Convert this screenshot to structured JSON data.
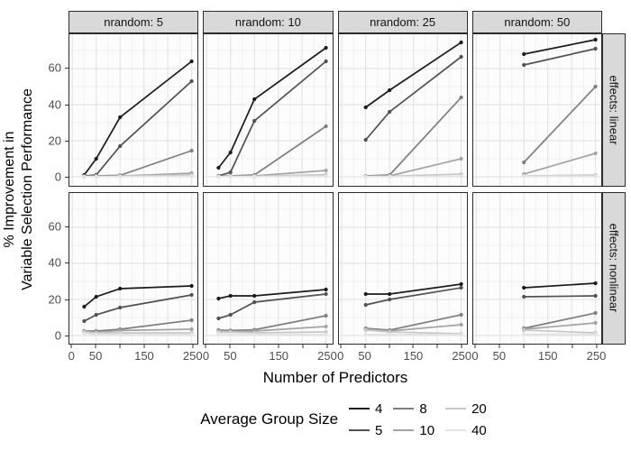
{
  "chart_data": {
    "type": "line",
    "title": "",
    "xlabel": "Number of Predictors",
    "ylabel": "% Improvement in\nVariable Selection Performance",
    "legend_title": "Average Group Size",
    "legend_position": "bottom",
    "grid": true,
    "x_axis": {
      "lim": [
        -6,
        262
      ],
      "ticks_all": [
        0,
        50,
        100,
        150,
        200,
        250
      ],
      "ticks_labeled": [
        0,
        50,
        150,
        250
      ],
      "minor": [
        25,
        75,
        125,
        175,
        225
      ]
    },
    "y_axis": {
      "lim": [
        -5,
        79
      ],
      "ticks": [
        0,
        20,
        40,
        60
      ],
      "minor": [
        10,
        30,
        50,
        70
      ]
    },
    "col_labels": [
      "nrandom: 5",
      "nrandom: 10",
      "nrandom: 25",
      "nrandom: 50"
    ],
    "row_labels": [
      "effects: linear",
      "effects: nonlinear"
    ],
    "series": [
      {
        "name": "4",
        "color": "#1b1b1b"
      },
      {
        "name": "5",
        "color": "#515151"
      },
      {
        "name": "8",
        "color": "#7f7f7f"
      },
      {
        "name": "10",
        "color": "#a4a4a4"
      },
      {
        "name": "20",
        "color": "#c7c7c7"
      },
      {
        "name": "40",
        "color": "#e4e4e4"
      }
    ],
    "panels": [
      {
        "col": "nrandom: 5",
        "row": "effects: linear",
        "values": [
          [
            [
              25,
              1
            ],
            [
              50,
              10
            ],
            [
              100,
              33
            ],
            [
              250,
              64
            ]
          ],
          [
            [
              25,
              0.5
            ],
            [
              50,
              1
            ],
            [
              100,
              17
            ],
            [
              250,
              53
            ]
          ],
          [
            [
              25,
              0.3
            ],
            [
              50,
              0.5
            ],
            [
              100,
              0.8
            ],
            [
              250,
              14.5
            ]
          ],
          [
            [
              25,
              0.2
            ],
            [
              50,
              0.3
            ],
            [
              100,
              0.4
            ],
            [
              250,
              2
            ]
          ],
          [
            [
              25,
              0.2
            ],
            [
              50,
              0.2
            ],
            [
              100,
              0.3
            ],
            [
              250,
              1
            ]
          ],
          [
            [
              25,
              0.1
            ],
            [
              50,
              0.1
            ],
            [
              100,
              0.1
            ],
            [
              250,
              0.3
            ]
          ]
        ]
      },
      {
        "col": "nrandom: 10",
        "row": "effects: linear",
        "values": [
          [
            [
              25,
              5
            ],
            [
              50,
              13.5
            ],
            [
              100,
              43
            ],
            [
              250,
              71.5
            ]
          ],
          [
            [
              25,
              0.5
            ],
            [
              50,
              2.5
            ],
            [
              100,
              31
            ],
            [
              250,
              64
            ]
          ],
          [
            [
              25,
              0.3
            ],
            [
              50,
              0.5
            ],
            [
              100,
              1
            ],
            [
              250,
              28
            ]
          ],
          [
            [
              25,
              0.2
            ],
            [
              50,
              0.3
            ],
            [
              100,
              0.5
            ],
            [
              250,
              3.5
            ]
          ],
          [
            [
              25,
              0.2
            ],
            [
              50,
              0.2
            ],
            [
              100,
              0.3
            ],
            [
              250,
              1.2
            ]
          ],
          [
            [
              25,
              0.1
            ],
            [
              50,
              0.1
            ],
            [
              100,
              0.1
            ],
            [
              250,
              0.3
            ]
          ]
        ]
      },
      {
        "col": "nrandom: 25",
        "row": "effects: linear",
        "values": [
          [
            [
              50,
              38.5
            ],
            [
              100,
              48
            ],
            [
              250,
              74.5
            ]
          ],
          [
            [
              50,
              20.5
            ],
            [
              100,
              36
            ],
            [
              250,
              66.5
            ]
          ],
          [
            [
              50,
              0.5
            ],
            [
              100,
              1
            ],
            [
              250,
              44
            ]
          ],
          [
            [
              50,
              0.3
            ],
            [
              100,
              0.5
            ],
            [
              250,
              10
            ]
          ],
          [
            [
              50,
              0.2
            ],
            [
              100,
              0.3
            ],
            [
              250,
              1.5
            ]
          ],
          [
            [
              50,
              0.1
            ],
            [
              100,
              0.1
            ],
            [
              250,
              0.3
            ]
          ]
        ]
      },
      {
        "col": "nrandom: 50",
        "row": "effects: linear",
        "values": [
          [
            [
              100,
              68
            ],
            [
              250,
              76
            ]
          ],
          [
            [
              100,
              62
            ],
            [
              250,
              71
            ]
          ],
          [
            [
              100,
              8
            ],
            [
              250,
              50
            ]
          ],
          [
            [
              100,
              1.5
            ],
            [
              250,
              13
            ]
          ],
          [
            [
              100,
              0.5
            ],
            [
              250,
              1
            ]
          ],
          [
            [
              100,
              0.3
            ],
            [
              250,
              0.3
            ]
          ]
        ]
      },
      {
        "col": "nrandom: 5",
        "row": "effects: nonlinear",
        "values": [
          [
            [
              25,
              16
            ],
            [
              50,
              21.5
            ],
            [
              100,
              26
            ],
            [
              250,
              27.5
            ]
          ],
          [
            [
              25,
              8
            ],
            [
              50,
              11.5
            ],
            [
              100,
              15.5
            ],
            [
              250,
              22.5
            ]
          ],
          [
            [
              25,
              2.5
            ],
            [
              50,
              2.5
            ],
            [
              100,
              3.5
            ],
            [
              250,
              8.5
            ]
          ],
          [
            [
              25,
              2.2
            ],
            [
              50,
              1.8
            ],
            [
              100,
              2.8
            ],
            [
              250,
              3.5
            ]
          ],
          [
            [
              25,
              2
            ],
            [
              50,
              1.5
            ],
            [
              100,
              1.5
            ],
            [
              250,
              1.5
            ]
          ],
          [
            [
              25,
              1
            ],
            [
              50,
              0.6
            ],
            [
              100,
              0.6
            ],
            [
              250,
              0.6
            ]
          ]
        ]
      },
      {
        "col": "nrandom: 10",
        "row": "effects: nonlinear",
        "values": [
          [
            [
              25,
              20.5
            ],
            [
              50,
              22
            ],
            [
              100,
              22
            ],
            [
              250,
              25.5
            ]
          ],
          [
            [
              25,
              9.5
            ],
            [
              50,
              11.5
            ],
            [
              100,
              18.5
            ],
            [
              250,
              23
            ]
          ],
          [
            [
              25,
              3
            ],
            [
              50,
              2.8
            ],
            [
              100,
              3.2
            ],
            [
              250,
              11
            ]
          ],
          [
            [
              25,
              2.5
            ],
            [
              50,
              2.2
            ],
            [
              100,
              2.5
            ],
            [
              250,
              5
            ]
          ],
          [
            [
              25,
              2
            ],
            [
              50,
              2
            ],
            [
              100,
              1.5
            ],
            [
              250,
              2
            ]
          ],
          [
            [
              25,
              1
            ],
            [
              50,
              0.8
            ],
            [
              100,
              0.6
            ],
            [
              250,
              0.6
            ]
          ]
        ]
      },
      {
        "col": "nrandom: 25",
        "row": "effects: nonlinear",
        "values": [
          [
            [
              50,
              23
            ],
            [
              100,
              23
            ],
            [
              250,
              28.5
            ]
          ],
          [
            [
              50,
              17
            ],
            [
              100,
              20
            ],
            [
              250,
              26.5
            ]
          ],
          [
            [
              50,
              4
            ],
            [
              100,
              3
            ],
            [
              250,
              11.5
            ]
          ],
          [
            [
              50,
              3.5
            ],
            [
              100,
              2.5
            ],
            [
              250,
              6
            ]
          ],
          [
            [
              50,
              3
            ],
            [
              100,
              2
            ],
            [
              250,
              1
            ]
          ],
          [
            [
              50,
              0.6
            ],
            [
              100,
              0.6
            ],
            [
              250,
              0.6
            ]
          ]
        ]
      },
      {
        "col": "nrandom: 50",
        "row": "effects: nonlinear",
        "values": [
          [
            [
              100,
              26.5
            ],
            [
              250,
              29
            ]
          ],
          [
            [
              100,
              21.5
            ],
            [
              250,
              22
            ]
          ],
          [
            [
              100,
              4
            ],
            [
              250,
              12.5
            ]
          ],
          [
            [
              100,
              3.5
            ],
            [
              250,
              7
            ]
          ],
          [
            [
              100,
              3
            ],
            [
              250,
              1.5
            ]
          ],
          [
            [
              100,
              0.7
            ],
            [
              250,
              0.7
            ]
          ]
        ]
      }
    ]
  }
}
